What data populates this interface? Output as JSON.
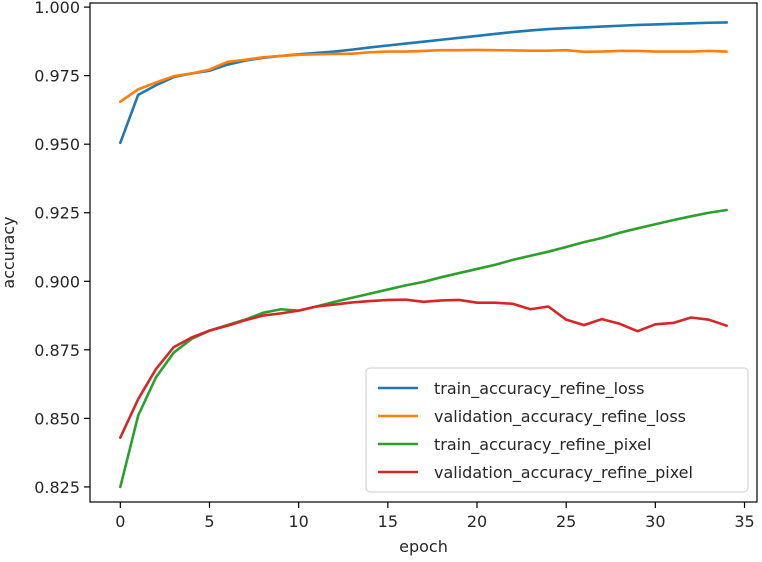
{
  "chart_data": {
    "type": "line",
    "title": "",
    "xlabel": "epoch",
    "ylabel": "accuracy",
    "xlim": [
      -1.7,
      35.7
    ],
    "ylim": [
      0.8195,
      1.0015
    ],
    "xticks": [
      "0",
      "5",
      "10",
      "15",
      "20",
      "25",
      "30",
      "35"
    ],
    "yticks": [
      "0.825",
      "0.850",
      "0.875",
      "0.900",
      "0.925",
      "0.950",
      "0.975",
      "1.000"
    ],
    "grid": false,
    "legend_position": "lower-right",
    "x": [
      0,
      1,
      2,
      3,
      4,
      5,
      6,
      7,
      8,
      9,
      10,
      11,
      12,
      13,
      14,
      15,
      16,
      17,
      18,
      19,
      20,
      21,
      22,
      23,
      24,
      25,
      26,
      27,
      28,
      29,
      30,
      31,
      32,
      33,
      34
    ],
    "series": [
      {
        "name": "train_accuracy_refine_loss",
        "color": "#1f77b4",
        "values": [
          0.9505,
          0.968,
          0.9715,
          0.9745,
          0.9758,
          0.9768,
          0.979,
          0.9805,
          0.9815,
          0.9822,
          0.9828,
          0.9833,
          0.9838,
          0.9845,
          0.9853,
          0.986,
          0.9867,
          0.9874,
          0.9881,
          0.9888,
          0.9895,
          0.9902,
          0.9909,
          0.9915,
          0.992,
          0.9923,
          0.9926,
          0.9929,
          0.9932,
          0.9935,
          0.9937,
          0.9939,
          0.9941,
          0.9943,
          0.9944
        ]
      },
      {
        "name": "validation_accuracy_refine_loss",
        "color": "#ff7f0e",
        "values": [
          0.9655,
          0.97,
          0.9725,
          0.9748,
          0.9758,
          0.9772,
          0.98,
          0.9808,
          0.9817,
          0.9822,
          0.9826,
          0.9828,
          0.9829,
          0.983,
          0.9835,
          0.9838,
          0.9838,
          0.984,
          0.9843,
          0.9843,
          0.9844,
          0.9843,
          0.9842,
          0.9841,
          0.9841,
          0.9843,
          0.9837,
          0.9838,
          0.984,
          0.984,
          0.9838,
          0.9838,
          0.9838,
          0.984,
          0.9838
        ]
      },
      {
        "name": "train_accuracy_refine_pixel",
        "color": "#2ca02c",
        "values": [
          0.825,
          0.851,
          0.865,
          0.874,
          0.879,
          0.882,
          0.884,
          0.886,
          0.8885,
          0.8898,
          0.8893,
          0.8908,
          0.8925,
          0.894,
          0.8955,
          0.897,
          0.8985,
          0.8998,
          0.9015,
          0.903,
          0.9045,
          0.906,
          0.9078,
          0.9093,
          0.9108,
          0.9125,
          0.9143,
          0.9158,
          0.9177,
          0.9193,
          0.9208,
          0.9223,
          0.9237,
          0.925,
          0.926
        ]
      },
      {
        "name": "validation_accuracy_refine_pixel",
        "color": "#d62728",
        "values": [
          0.843,
          0.857,
          0.868,
          0.876,
          0.8795,
          0.882,
          0.8838,
          0.8858,
          0.8875,
          0.8883,
          0.8893,
          0.8908,
          0.8915,
          0.8923,
          0.8928,
          0.8932,
          0.8933,
          0.8925,
          0.893,
          0.8932,
          0.8922,
          0.8922,
          0.8918,
          0.8898,
          0.8908,
          0.886,
          0.884,
          0.8862,
          0.8845,
          0.8818,
          0.8843,
          0.8848,
          0.8868,
          0.886,
          0.8838
        ]
      }
    ]
  }
}
